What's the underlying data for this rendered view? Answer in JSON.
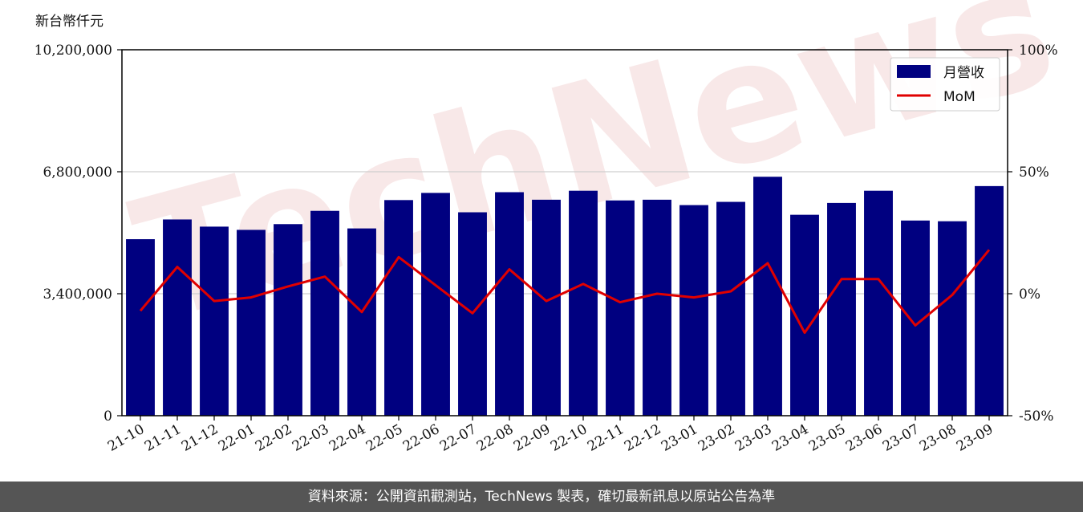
{
  "chart_data": {
    "type": "bar",
    "unit_label": "新台幣仟元",
    "categories": [
      "21-10",
      "21-11",
      "21-12",
      "22-01",
      "22-02",
      "22-03",
      "22-04",
      "22-05",
      "22-06",
      "22-07",
      "22-08",
      "22-09",
      "22-10",
      "22-11",
      "22-12",
      "23-01",
      "23-02",
      "23-03",
      "23-04",
      "23-05",
      "23-06",
      "23-07",
      "23-08",
      "23-09"
    ],
    "series": [
      {
        "name": "月營收",
        "type": "bar",
        "axis": "left",
        "color": "#000080",
        "values": [
          4920000,
          5470000,
          5270000,
          5180000,
          5340000,
          5710000,
          5220000,
          6010000,
          6210000,
          5670000,
          6230000,
          6020000,
          6270000,
          6000000,
          6020000,
          5870000,
          5960000,
          6660000,
          5600000,
          5930000,
          6270000,
          5440000,
          5420000,
          6400000
        ]
      },
      {
        "name": "MoM",
        "type": "line",
        "axis": "right",
        "color": "#e00000",
        "values": [
          -7.0,
          11.0,
          -3.0,
          -1.5,
          3.0,
          7.0,
          -7.5,
          15.0,
          3.5,
          -8.0,
          10.0,
          -3.0,
          4.0,
          -3.5,
          0.0,
          -1.5,
          1.0,
          12.5,
          -16.0,
          6.0,
          6.0,
          -13.0,
          -0.5,
          18.0
        ]
      }
    ],
    "y_left": {
      "range": [
        0,
        10200000
      ],
      "ticks": [
        0,
        3400000,
        6800000,
        10200000
      ],
      "tick_labels": [
        "0",
        "3,400,000",
        "6,800,000",
        "10,200,000"
      ]
    },
    "y_right": {
      "range": [
        -50,
        100
      ],
      "ticks": [
        -50,
        0,
        50,
        100
      ],
      "tick_labels": [
        "-50%",
        "0%",
        "50%",
        "100%"
      ]
    },
    "grid": true,
    "legend": "top-right"
  },
  "watermark": "TechNews",
  "footer": {
    "text": "資料來源：公開資訊觀測站，TechNews 製表，確切最新訊息以原站公告為準"
  }
}
